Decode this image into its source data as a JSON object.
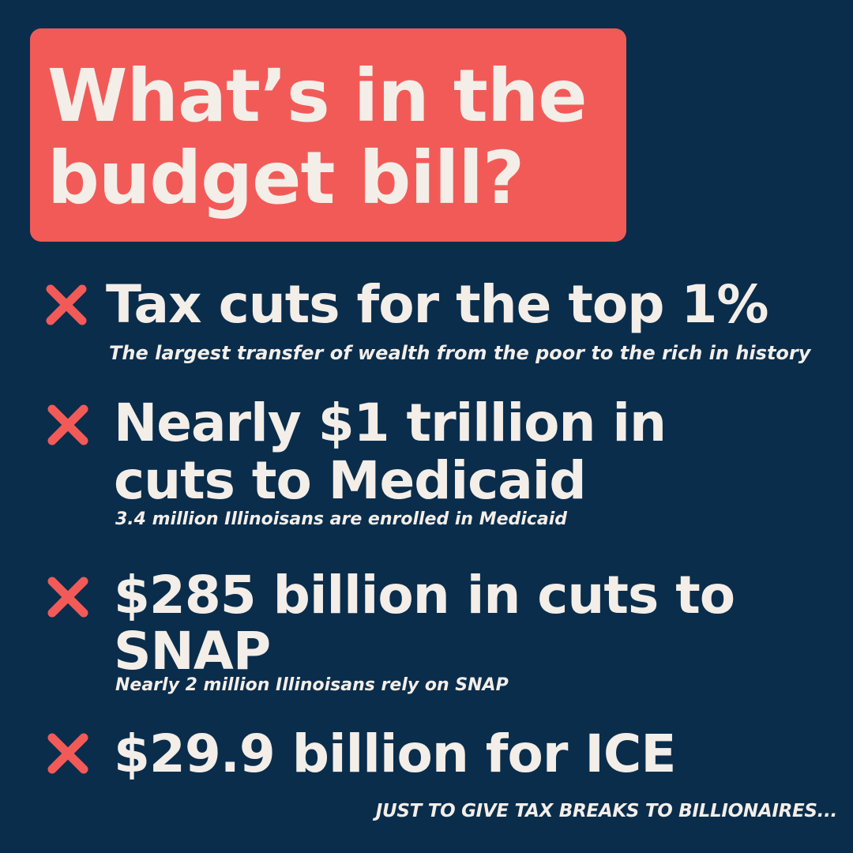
{
  "colors": {
    "background": "#0a2d4c",
    "accent": "#f25a58",
    "text": "#f4eee8"
  },
  "title": {
    "line1": "What’s in the",
    "line2": "budget bill?"
  },
  "items": [
    {
      "icon": "x-mark-icon",
      "headline_lines": [
        "Tax cuts for the top 1%"
      ],
      "subtext": "The largest transfer of wealth from the poor to the rich in history"
    },
    {
      "icon": "x-mark-icon",
      "headline_lines": [
        "Nearly $1 trillion in",
        "cuts to Medicaid"
      ],
      "subtext": "3.4 million Illinoisans are enrolled in Medicaid"
    },
    {
      "icon": "x-mark-icon",
      "headline_lines": [
        "$285 billion in cuts to",
        "SNAP"
      ],
      "subtext": "Nearly 2 million Illinoisans rely on SNAP"
    },
    {
      "icon": "x-mark-icon",
      "headline_lines": [
        "$29.9 billion for ICE"
      ],
      "subtext": ""
    }
  ],
  "footer": "JUST TO GIVE TAX BREAKS TO BILLIONAIRES..."
}
